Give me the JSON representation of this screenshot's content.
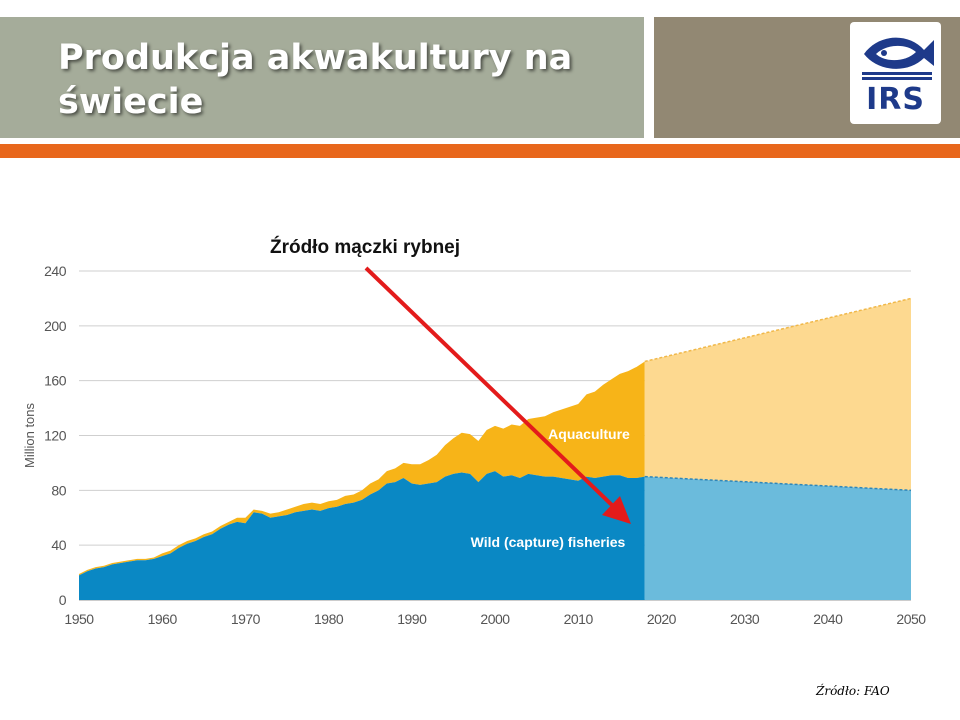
{
  "slide": {
    "title": "Produkcja akwakultury na świecie",
    "logo_text": "IRS",
    "source_note": "Źródło: FAO"
  },
  "colors": {
    "aquaculture": "#f7b418",
    "aquaculture_projected": "#fdd990",
    "capture": "#0a88c4",
    "capture_projected": "#6bbbdc",
    "arrow": "#e31b1b",
    "header": "#a5ac9a",
    "header_right": "#928873",
    "accent": "#e8671c"
  },
  "chart_data": {
    "type": "area",
    "stacked": true,
    "ylabel": "Million tons",
    "ylim": [
      0,
      240
    ],
    "xlim": [
      1950,
      2050
    ],
    "yticks": [
      0,
      40,
      80,
      120,
      160,
      200,
      240
    ],
    "xticks": [
      1950,
      1960,
      1970,
      1980,
      1990,
      2000,
      2010,
      2020,
      2030,
      2040,
      2050
    ],
    "grid": "horizontal",
    "projection_start": 2018,
    "annotation": "Źródło mączki rybnej",
    "x": [
      1950,
      1951,
      1952,
      1953,
      1954,
      1955,
      1956,
      1957,
      1958,
      1959,
      1960,
      1961,
      1962,
      1963,
      1964,
      1965,
      1966,
      1967,
      1968,
      1969,
      1970,
      1971,
      1972,
      1973,
      1974,
      1975,
      1976,
      1977,
      1978,
      1979,
      1980,
      1981,
      1982,
      1983,
      1984,
      1985,
      1986,
      1987,
      1988,
      1989,
      1990,
      1991,
      1992,
      1993,
      1994,
      1995,
      1996,
      1997,
      1998,
      1999,
      2000,
      2001,
      2002,
      2003,
      2004,
      2005,
      2006,
      2007,
      2008,
      2009,
      2010,
      2011,
      2012,
      2013,
      2014,
      2015,
      2016,
      2017,
      2018
    ],
    "series": [
      {
        "name": "Wild (capture) fisheries",
        "values": [
          18,
          21,
          23,
          24,
          26,
          27,
          28,
          29,
          29,
          30,
          32,
          34,
          38,
          41,
          43,
          46,
          48,
          52,
          55,
          57,
          56,
          64,
          63,
          60,
          61,
          62,
          64,
          65,
          66,
          65,
          67,
          68,
          70,
          71,
          73,
          77,
          80,
          85,
          86,
          89,
          85,
          84,
          85,
          86,
          90,
          92,
          93,
          92,
          86,
          92,
          94,
          90,
          91,
          89,
          92,
          91,
          90,
          90,
          89,
          88,
          87,
          90,
          89,
          90,
          91,
          91,
          89,
          89,
          90
        ]
      },
      {
        "name": "Aquaculture",
        "values": [
          1,
          1,
          1,
          1,
          1,
          1,
          1,
          1,
          1,
          1,
          2,
          2,
          2,
          2,
          2,
          2,
          2,
          2,
          2,
          3,
          4,
          2,
          2,
          3,
          3,
          4,
          4,
          5,
          5,
          5,
          5,
          5,
          6,
          6,
          7,
          8,
          8,
          9,
          10,
          11,
          14,
          15,
          17,
          20,
          23,
          26,
          29,
          29,
          30,
          32,
          33,
          35,
          37,
          38,
          40,
          42,
          44,
          47,
          50,
          53,
          56,
          60,
          63,
          67,
          70,
          74,
          78,
          81,
          84
        ]
      },
      {
        "name": "Wild (capture) fisheries (projected)",
        "x": [
          2018,
          2050
        ],
        "values": [
          90,
          80
        ]
      },
      {
        "name": "Aquaculture (projected)",
        "x": [
          2018,
          2050
        ],
        "values": [
          84,
          140
        ]
      }
    ],
    "labels": {
      "aquaculture": "Aquaculture",
      "capture": "Wild (capture) fisheries"
    }
  }
}
